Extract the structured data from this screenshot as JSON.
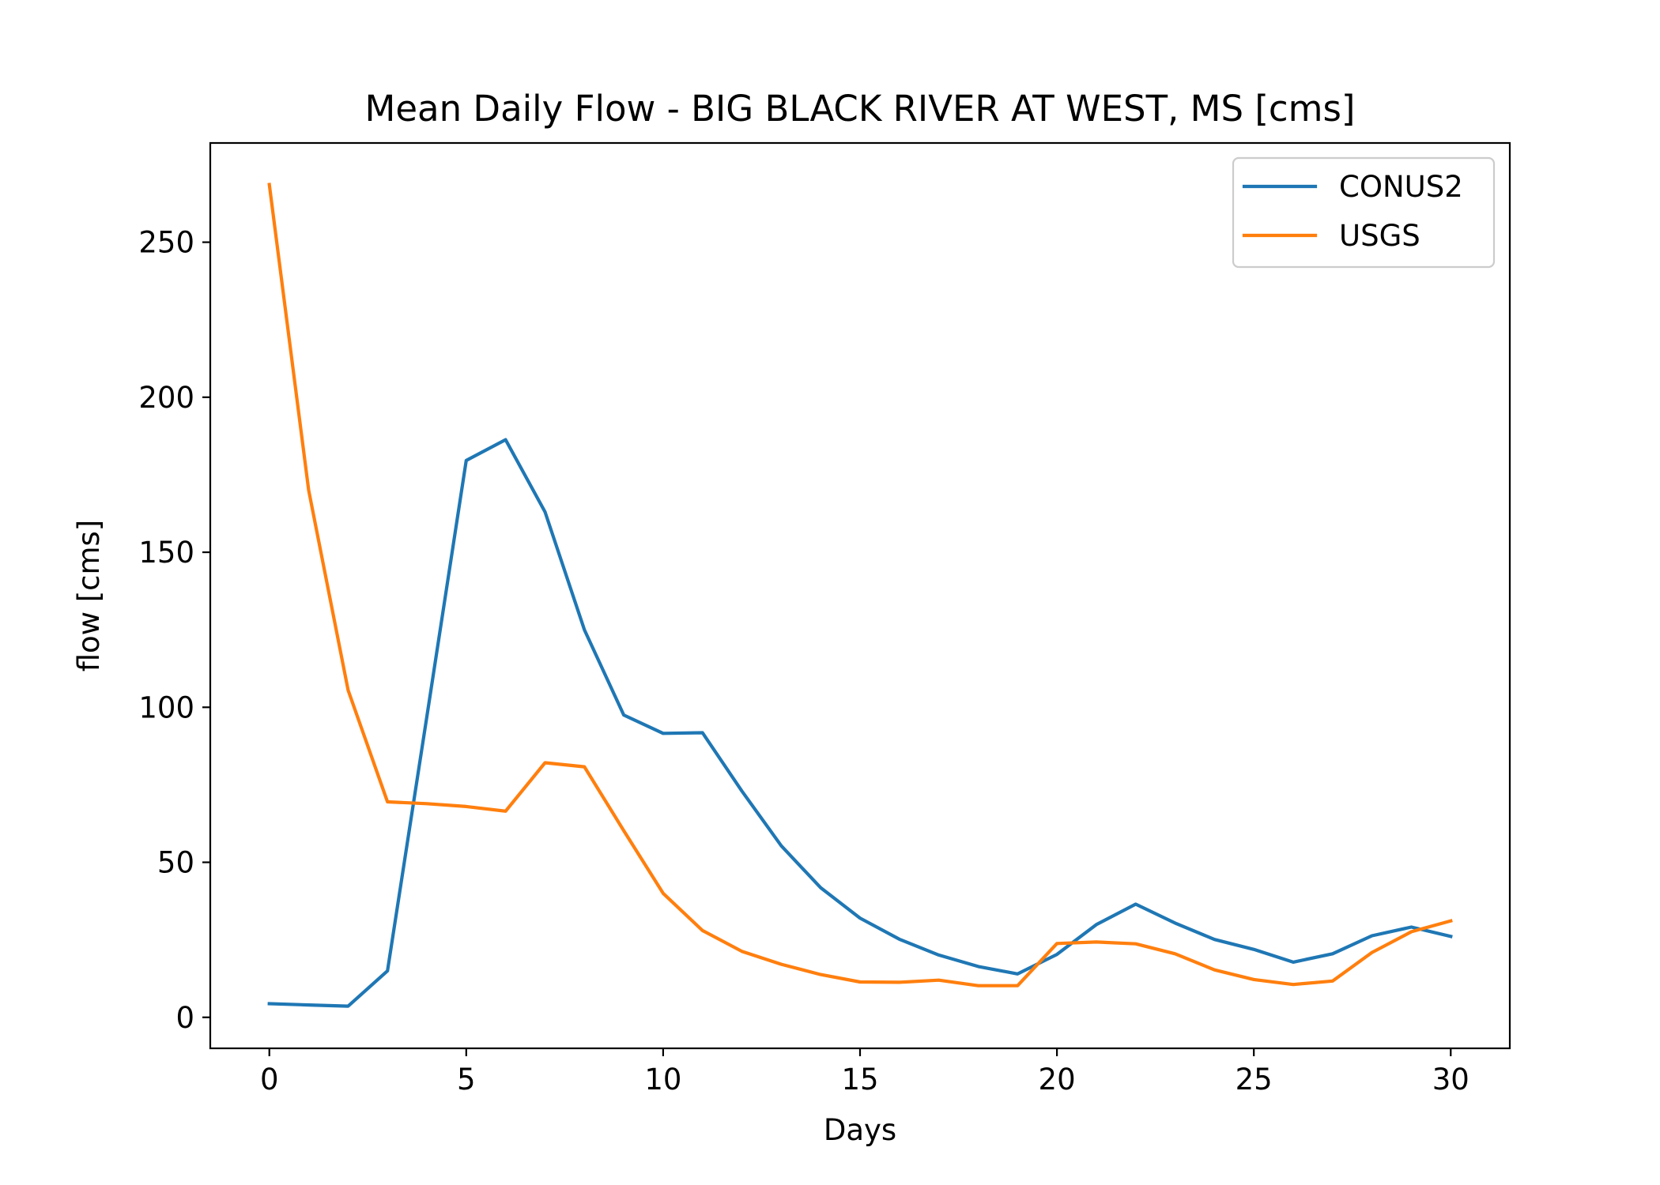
{
  "chart_data": {
    "type": "line",
    "title": "Mean Daily Flow - BIG BLACK RIVER AT WEST, MS [cms]",
    "xlabel": "Days",
    "ylabel": "flow [cms]",
    "xlim": [
      -1.5,
      31.5
    ],
    "ylim": [
      -10,
      282
    ],
    "xticks": [
      0,
      5,
      10,
      15,
      20,
      25,
      30
    ],
    "xtick_labels": [
      "0",
      "5",
      "10",
      "15",
      "20",
      "25",
      "30"
    ],
    "yticks": [
      0,
      50,
      100,
      150,
      200,
      250
    ],
    "ytick_labels": [
      "0",
      "50",
      "100",
      "150",
      "200",
      "250"
    ],
    "grid": false,
    "legend_position": "top-right",
    "x": [
      0,
      1,
      2,
      3,
      4,
      5,
      6,
      7,
      8,
      9,
      10,
      11,
      12,
      13,
      14,
      15,
      16,
      17,
      18,
      19,
      20,
      21,
      22,
      23,
      24,
      25,
      26,
      27,
      28,
      29,
      30
    ],
    "series": [
      {
        "name": "CONUS2",
        "color": "#1f77b4",
        "values": [
          4.4,
          4.0,
          3.6,
          15,
          97,
          179.6,
          186.3,
          163.0,
          125.0,
          97.5,
          91.6,
          91.8,
          73.0,
          55.3,
          41.8,
          32.0,
          25.2,
          20.1,
          16.4,
          14.0,
          20.3,
          29.9,
          36.5,
          30.4,
          25.1,
          21.9,
          17.8,
          20.5,
          26.3,
          29.1,
          26.1
        ]
      },
      {
        "name": "USGS",
        "color": "#ff7f0e",
        "values": [
          268.6,
          170.0,
          105.5,
          69.5,
          68.9,
          68.0,
          66.5,
          82.1,
          80.8,
          60.2,
          40.0,
          28.0,
          21.3,
          17.1,
          13.8,
          11.4,
          11.3,
          12.0,
          10.2,
          10.2,
          23.8,
          24.3,
          23.7,
          20.5,
          15.3,
          12.2,
          10.6,
          11.7,
          20.9,
          27.6,
          31.1
        ]
      }
    ]
  }
}
